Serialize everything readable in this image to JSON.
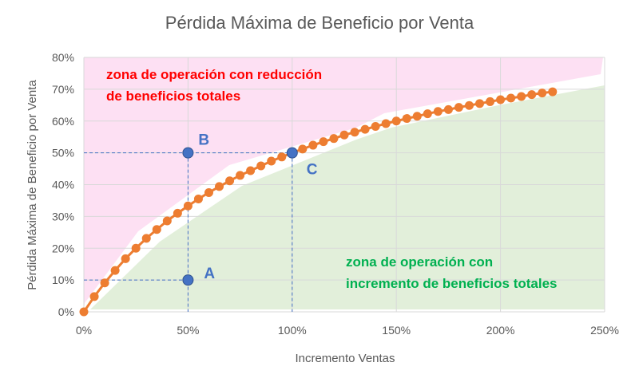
{
  "chart_data": {
    "type": "line",
    "title": "Pérdida Máxima de Beneficio por Venta",
    "xlabel": "Incremento Ventas",
    "ylabel": "Pérdida Máxima de Beneficio por Venta",
    "xlim": [
      0,
      250
    ],
    "ylim": [
      0,
      80
    ],
    "grid": true,
    "x_ticks": [
      "0%",
      "50%",
      "100%",
      "150%",
      "200%",
      "250%"
    ],
    "y_ticks": [
      "0%",
      "10%",
      "20%",
      "30%",
      "40%",
      "50%",
      "60%",
      "70%",
      "80%"
    ],
    "series": [
      {
        "color": "#ed7d31",
        "x": [
          0,
          5,
          10,
          15,
          20,
          25,
          30,
          35,
          40,
          45,
          50,
          55,
          60,
          65,
          70,
          75,
          80,
          85,
          90,
          95,
          100,
          105,
          110,
          115,
          120,
          125,
          130,
          135,
          140,
          145,
          150,
          155,
          160,
          165,
          170,
          175,
          180,
          185,
          190,
          195,
          200,
          205,
          210,
          215,
          220,
          225
        ],
        "y": [
          0,
          4.8,
          9.1,
          13.0,
          16.7,
          20.0,
          23.1,
          25.9,
          28.6,
          31.0,
          33.3,
          35.5,
          37.5,
          39.4,
          41.2,
          42.9,
          44.4,
          45.9,
          47.4,
          48.7,
          50.0,
          51.2,
          52.4,
          53.5,
          54.5,
          55.6,
          56.5,
          57.4,
          58.3,
          59.2,
          60.0,
          60.8,
          61.5,
          62.3,
          63.0,
          63.6,
          64.3,
          64.9,
          65.5,
          66.1,
          66.7,
          67.2,
          67.7,
          68.3,
          68.8,
          69.2
        ]
      }
    ],
    "points": [
      {
        "label": "A",
        "x": 50,
        "y": 10,
        "color": "#4472c4"
      },
      {
        "label": "B",
        "x": 50,
        "y": 50,
        "color": "#4472c4"
      },
      {
        "label": "C",
        "x": 100,
        "y": 50,
        "color": "#4472c4"
      }
    ],
    "annotations": {
      "zone_loss": [
        "zona de operación con reducción",
        "de beneficios totales"
      ],
      "zone_gain": [
        "zona de operación con",
        "incremento de beneficios totales"
      ],
      "zone_loss_color": "#ff0000",
      "zone_gain_color": "#00b050",
      "zone_loss_fill": "#fde0f3",
      "zone_gain_fill": "#e2efda"
    }
  }
}
